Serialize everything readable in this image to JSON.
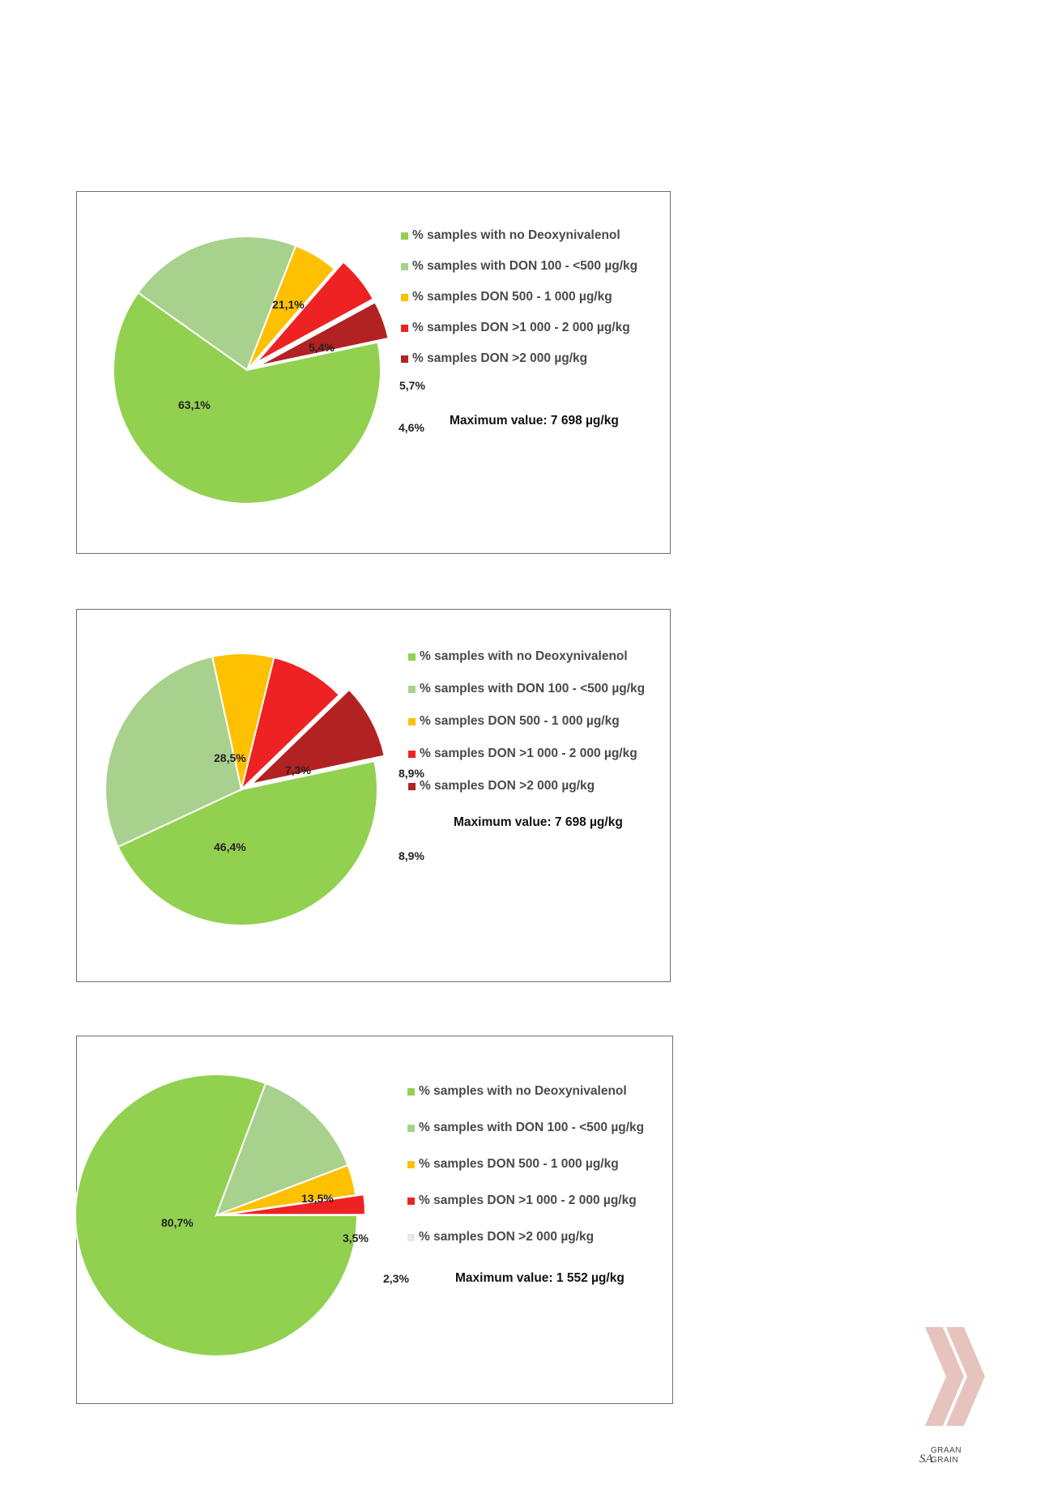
{
  "colors": {
    "none": "#92d050",
    "low": "#a9d18e",
    "mid": "#ffc000",
    "high": "#ee2222",
    "vhigh": "#b22222",
    "empty": "#e8e8e8"
  },
  "chart_data": [
    {
      "type": "pie",
      "title": "",
      "legend_placement": "top-right",
      "series": [
        {
          "name": "% samples with no Deoxynivalenol",
          "value": 63.1,
          "label": "63,1%",
          "color": "#92d050",
          "exploded": false
        },
        {
          "name": "% samples with DON  100 - <500 µg/kg",
          "value": 21.1,
          "label": "21,1%",
          "color": "#a9d18e",
          "exploded": false
        },
        {
          "name": "% samples DON  500 - 1 000 µg/kg",
          "value": 5.4,
          "label": "5,4%",
          "color": "#ffc000",
          "exploded": false
        },
        {
          "name": "% samples DON >1 000 - 2 000 µg/kg",
          "value": 5.7,
          "label": "5,7%",
          "color": "#ee2222",
          "exploded": true
        },
        {
          "name": "% samples DON >2 000 µg/kg",
          "value": 4.6,
          "label": "4,6%",
          "color": "#b22222",
          "exploded": true
        }
      ],
      "annotation": "Maximum value: 7 698 µg/kg"
    },
    {
      "type": "pie",
      "title": "",
      "legend_placement": "top-right",
      "series": [
        {
          "name": "% samples with no Deoxynivalenol",
          "value": 46.4,
          "label": "46,4%",
          "color": "#92d050",
          "exploded": false
        },
        {
          "name": "% samples with DON  100 - <500 µg/kg",
          "value": 28.5,
          "label": "28,5%",
          "color": "#a9d18e",
          "exploded": false
        },
        {
          "name": "% samples DON  500 - 1 000 µg/kg",
          "value": 7.3,
          "label": "7,3%",
          "color": "#ffc000",
          "exploded": false
        },
        {
          "name": "% samples DON >1 000 - 2 000 µg/kg",
          "value": 8.9,
          "label": "8,9%",
          "color": "#ee2222",
          "exploded": false
        },
        {
          "name": "% samples DON >2 000 µg/kg",
          "value": 8.9,
          "label": "8,9%",
          "color": "#b22222",
          "exploded": true
        }
      ],
      "annotation": "Maximum value: 7 698 µg/kg"
    },
    {
      "type": "pie",
      "title": "",
      "legend_placement": "top-right",
      "series": [
        {
          "name": "% samples with no Deoxynivalenol",
          "value": 80.7,
          "label": "80,7%",
          "color": "#92d050",
          "exploded": false
        },
        {
          "name": "% samples with DON  100 - <500 µg/kg",
          "value": 13.5,
          "label": "13,5%",
          "color": "#a9d18e",
          "exploded": false
        },
        {
          "name": "% samples DON  500 - 1 000 µg/kg",
          "value": 3.5,
          "label": "3,5%",
          "color": "#ffc000",
          "exploded": false
        },
        {
          "name": "% samples DON >1 000 - 2 000 µg/kg",
          "value": 2.3,
          "label": "2,3%",
          "color": "#ee2222",
          "exploded": true
        },
        {
          "name": "% samples DON >2 000 µg/kg",
          "value": 0,
          "label": "",
          "color": "#e8e8e8",
          "exploded": false
        }
      ],
      "annotation": "Maximum value: 1 552 µg/kg"
    }
  ],
  "logo": {
    "brand_sa": "SA",
    "brand_graan": "GRAAN",
    "brand_grain": "GRAIN",
    "chevron_color": "#e7c3bd"
  }
}
